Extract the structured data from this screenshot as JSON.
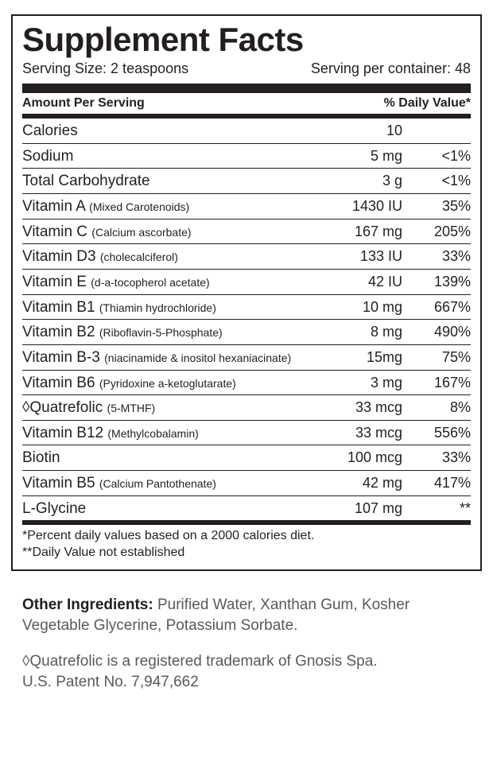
{
  "title": "Supplement Facts",
  "serving_size_label": "Serving Size: 2 teaspoons",
  "servings_per_container_label": "Serving per container: 48",
  "header_left": "Amount Per Serving",
  "header_right": "% Daily Value*",
  "rows": [
    {
      "name": "Calories",
      "sub": "",
      "amount": "10",
      "dv": ""
    },
    {
      "name": "Sodium",
      "sub": "",
      "amount": "5 mg",
      "dv": "<1%"
    },
    {
      "name": "Total Carbohydrate",
      "sub": "",
      "amount": "3 g",
      "dv": "<1%"
    },
    {
      "name": "Vitamin A ",
      "sub": "(Mixed Carotenoids)",
      "amount": "1430 IU",
      "dv": "35%"
    },
    {
      "name": "Vitamin C ",
      "sub": "(Calcium ascorbate)",
      "amount": "167 mg",
      "dv": "205%"
    },
    {
      "name": "Vitamin D3 ",
      "sub": "(cholecalciferol)",
      "amount": "133 IU",
      "dv": "33%"
    },
    {
      "name": "Vitamin E ",
      "sub": "(d-a-tocopherol acetate)",
      "amount": "42 IU",
      "dv": "139%"
    },
    {
      "name": "Vitamin B1 ",
      "sub": "(Thiamin hydrochloride)",
      "amount": "10 mg",
      "dv": "667%"
    },
    {
      "name": "Vitamin B2 ",
      "sub": "(Riboflavin-5-Phosphate)",
      "amount": "8 mg",
      "dv": "490%"
    },
    {
      "name": "Vitamin B-3 ",
      "sub": "(niacinamide & inositol hexaniacinate)",
      "amount": "15mg",
      "dv": "75%"
    },
    {
      "name": "Vitamin B6 ",
      "sub": "(Pyridoxine a-ketoglutarate)",
      "amount": "3 mg",
      "dv": "167%"
    },
    {
      "name": "◊Quatrefolic ",
      "sub": "(5-MTHF)",
      "amount": "33 mcg",
      "dv": "8%"
    },
    {
      "name": "Vitamin B12 ",
      "sub": "(Methylcobalamin)",
      "amount": "33 mcg",
      "dv": "556%"
    },
    {
      "name": "Biotin",
      "sub": "",
      "amount": "100 mcg",
      "dv": "33%"
    },
    {
      "name": "Vitamin B5 ",
      "sub": "(Calcium Pantothenate)",
      "amount": "42 mg",
      "dv": "417%"
    },
    {
      "name": "L-Glycine",
      "sub": "",
      "amount": "107 mg",
      "dv": "**"
    }
  ],
  "footnote1": "*Percent daily values based on a 2000 calories diet.",
  "footnote2": "**Daily Value not established",
  "other_label": "Other Ingredients: ",
  "other_text": "Purified Water, Xanthan Gum, Kosher Vegetable Glycerine, Potassium Sorbate.",
  "trademark_line1": "◊Quatrefolic is a registered trademark of Gnosis Spa.",
  "trademark_line2": "U.S. Patent No. 7,947,662",
  "colors": {
    "text": "#231f20",
    "muted": "#58595b",
    "bg": "#ffffff"
  }
}
